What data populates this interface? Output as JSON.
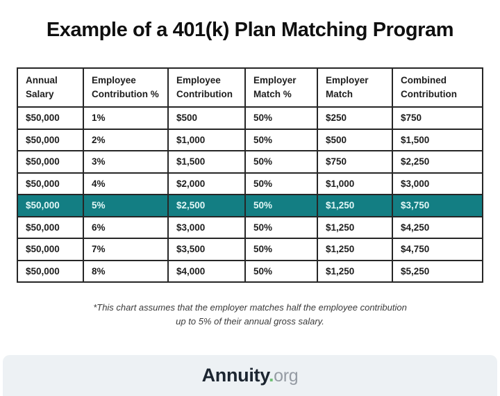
{
  "title": "Example of a 401(k) Plan Matching Program",
  "chart_data": {
    "type": "table",
    "title": "Example of a 401(k) Plan Matching Program",
    "columns": [
      "Annual Salary",
      "Employee Contribution %",
      "Employee Contribution",
      "Employer Match %",
      "Employer Match",
      "Combined Contribution"
    ],
    "rows": [
      [
        "$50,000",
        "1%",
        "$500",
        "50%",
        "$250",
        "$750"
      ],
      [
        "$50,000",
        "2%",
        "$1,000",
        "50%",
        "$500",
        "$1,500"
      ],
      [
        "$50,000",
        "3%",
        "$1,500",
        "50%",
        "$750",
        "$2,250"
      ],
      [
        "$50,000",
        "4%",
        "$2,000",
        "50%",
        "$1,000",
        "$3,000"
      ],
      [
        "$50,000",
        "5%",
        "$2,500",
        "50%",
        "$1,250",
        "$3,750"
      ],
      [
        "$50,000",
        "6%",
        "$3,000",
        "50%",
        "$1,250",
        "$4,250"
      ],
      [
        "$50,000",
        "7%",
        "$3,500",
        "50%",
        "$1,250",
        "$4,750"
      ],
      [
        "$50,000",
        "8%",
        "$4,000",
        "50%",
        "$1,250",
        "$5,250"
      ]
    ],
    "highlighted_row_index": 4,
    "highlight_color": "#137e83"
  },
  "footnote_line1": "*This chart assumes that the employer matches half the employee contribution",
  "footnote_line2": "up to 5% of their annual gross salary.",
  "footer": {
    "brand_primary": "Annuity",
    "brand_dot": ".",
    "brand_suffix": "org",
    "background_color": "#edf1f4",
    "dot_color": "#6fbf73"
  }
}
